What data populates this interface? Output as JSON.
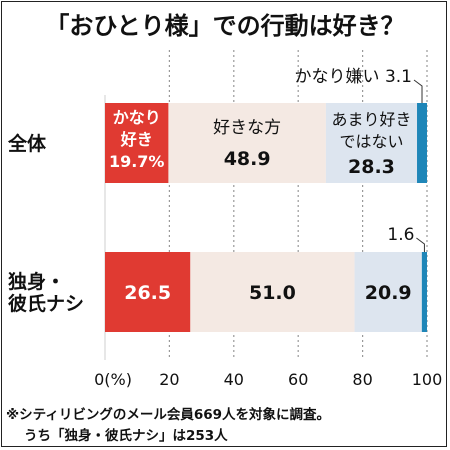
{
  "title": "「おひとり様」での行動は好き？",
  "notes": [
    "※シティリビングのメール会員669人を対象に調査。",
    "うち「独身・彼氏ナシ」は253人"
  ],
  "colors": {
    "segments": [
      "#e03a32",
      "#f4e9e3",
      "#dde5ef",
      "#1f86b8"
    ],
    "grid": "#999999",
    "text_dark": "#111111",
    "text_light": "#ffffff"
  },
  "chart_data": {
    "type": "bar",
    "orientation": "horizontal",
    "stacked": true,
    "categories": [
      "全体",
      "独身・彼氏ナシ"
    ],
    "category_label_lines": [
      [
        "全体"
      ],
      [
        "独身・",
        "彼氏ナシ"
      ]
    ],
    "series": [
      {
        "name": "かなり好き",
        "values": [
          19.7,
          26.5
        ]
      },
      {
        "name": "好きな方",
        "values": [
          48.9,
          51.0
        ]
      },
      {
        "name": "あまり好きではない",
        "values": [
          28.3,
          20.9
        ]
      },
      {
        "name": "かなり嫌い",
        "values": [
          3.1,
          1.6
        ]
      }
    ],
    "segment_labels": [
      [
        [
          "かなり",
          "好き",
          "19.7%"
        ],
        [
          "好きな方",
          "48.9"
        ],
        [
          "あまり好き",
          "ではない",
          "28.3"
        ],
        [
          "3.1"
        ]
      ],
      [
        [
          "26.5"
        ],
        [
          "51.0"
        ],
        [
          "20.9"
        ],
        [
          "1.6"
        ]
      ]
    ],
    "callout_text": "かなり嫌い",
    "xlim": [
      0,
      100
    ],
    "xticks": [
      0,
      20,
      40,
      60,
      80,
      100
    ],
    "xtick_labels": [
      "0(%)",
      "20",
      "40",
      "60",
      "80",
      "100"
    ],
    "grid": true
  }
}
